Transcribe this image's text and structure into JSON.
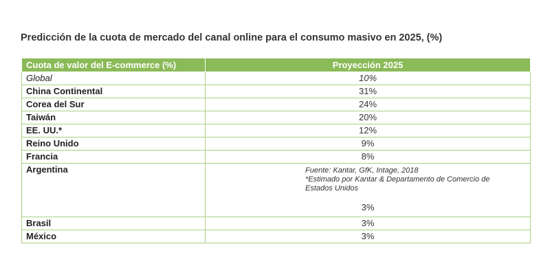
{
  "title": "Predicción de la cuota de mercado del canal online para el consumo masivo en 2025, (%)",
  "colors": {
    "header_bg": "#8bba58",
    "border": "#a9cf86"
  },
  "chart_data": {
    "type": "table",
    "title": "Predicción de la cuota de mercado del canal online para el consumo masivo en 2025, (%)",
    "columns": [
      "Cuota de valor del E-commerce (%)",
      "Proyección 2025"
    ],
    "rows": [
      {
        "label": "Global",
        "value": "10%",
        "italic": true
      },
      {
        "label": "China Continental",
        "value": "31%"
      },
      {
        "label": "Corea del Sur",
        "value": "24%"
      },
      {
        "label": "Taiwán",
        "value": "20%"
      },
      {
        "label": "EE. UU.*",
        "value": "12%"
      },
      {
        "label": "Reino Unido",
        "value": "9%"
      },
      {
        "label": "Francia",
        "value": "8%"
      },
      {
        "label": "Argentina",
        "value": "3%"
      },
      {
        "label": "Brasil",
        "value": "3%"
      },
      {
        "label": "México",
        "value": "3%"
      }
    ],
    "notes": {
      "source": "Fuente: Kantar, GfK, Intage, 2018",
      "footnote": "*Estimado por Kantar & Departamento de Comercio de Estados Unidos"
    }
  }
}
